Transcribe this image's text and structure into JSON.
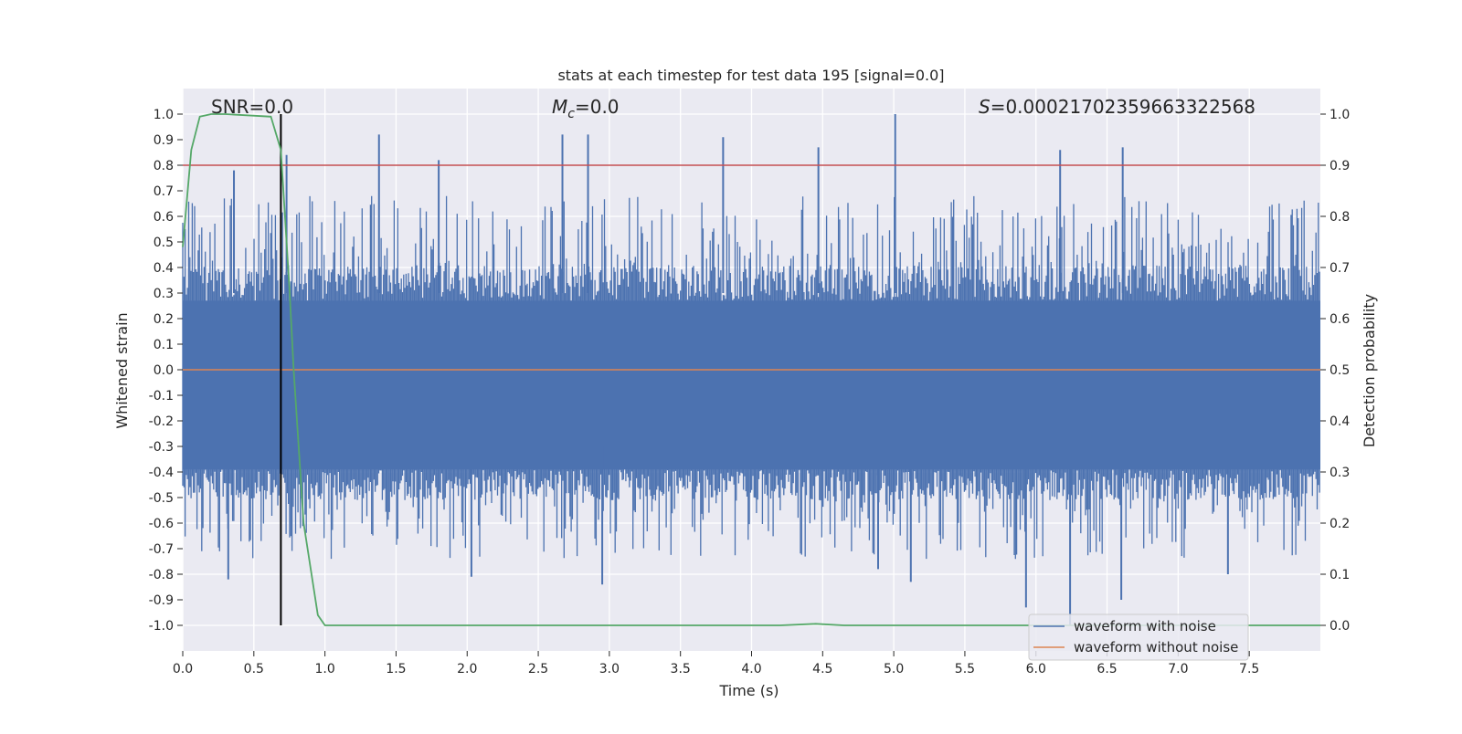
{
  "chart_data": {
    "type": "line",
    "title": "stats at each timestep for test data 195 [signal=0.0]",
    "xlabel": "Time (s)",
    "ylabel": "Whitened strain",
    "y2label": "Detection probability",
    "xlim": [
      0.0,
      8.0
    ],
    "ylim": [
      -1.1,
      1.1
    ],
    "y2lim": [
      -0.05,
      1.05
    ],
    "x_ticks": [
      "0.0",
      "0.5",
      "1.0",
      "1.5",
      "2.0",
      "2.5",
      "3.0",
      "3.5",
      "4.0",
      "4.5",
      "5.0",
      "5.5",
      "6.0",
      "6.5",
      "7.0",
      "7.5"
    ],
    "y_ticks": [
      "1.0",
      "0.9",
      "0.8",
      "0.7",
      "0.6",
      "0.5",
      "0.4",
      "0.3",
      "0.2",
      "0.1",
      "0.0",
      "-0.1",
      "-0.2",
      "-0.3",
      "-0.4",
      "-0.5",
      "-0.6",
      "-0.7",
      "-0.8",
      "-0.9",
      "-1.0"
    ],
    "y2_ticks": [
      "1.0",
      "0.9",
      "0.8",
      "0.7",
      "0.6",
      "0.5",
      "0.4",
      "0.3",
      "0.2",
      "0.1",
      "0.0"
    ],
    "grid": true,
    "legend_position": "lower-right",
    "annotations": {
      "snr": "SNR=0.0",
      "mc_symbol": "M",
      "mc_sub": "c",
      "mc_value": "=0.0",
      "s_symbol": "S",
      "s_value": "=0.00021702359663322568"
    },
    "threshold": {
      "axis": "right",
      "value": 0.9,
      "color": "#c44e52"
    },
    "marker_time": 0.69,
    "series": [
      {
        "name": "waveform with noise",
        "axis": "left",
        "color": "#4c72b0",
        "style": "dense-noise",
        "body_range": [
          -0.39,
          0.27
        ],
        "upper_peaks": [
          {
            "x": 0.36,
            "y": 0.78
          },
          {
            "x": 0.73,
            "y": 0.84
          },
          {
            "x": 1.38,
            "y": 0.92
          },
          {
            "x": 1.8,
            "y": 0.82
          },
          {
            "x": 2.67,
            "y": 0.92
          },
          {
            "x": 2.85,
            "y": 0.92
          },
          {
            "x": 3.8,
            "y": 0.91
          },
          {
            "x": 4.47,
            "y": 0.87
          },
          {
            "x": 5.01,
            "y": 1.0
          },
          {
            "x": 6.17,
            "y": 0.86
          },
          {
            "x": 6.61,
            "y": 0.87
          }
        ],
        "lower_peaks": [
          {
            "x": 0.32,
            "y": -0.82
          },
          {
            "x": 2.03,
            "y": -0.81
          },
          {
            "x": 2.95,
            "y": -0.84
          },
          {
            "x": 4.89,
            "y": -0.78
          },
          {
            "x": 5.12,
            "y": -0.83
          },
          {
            "x": 5.93,
            "y": -0.93
          },
          {
            "x": 6.24,
            "y": -1.0
          },
          {
            "x": 6.6,
            "y": -0.9
          },
          {
            "x": 7.35,
            "y": -0.8
          }
        ]
      },
      {
        "name": "waveform without noise",
        "axis": "left",
        "color": "#dd8452",
        "x": [
          0.0,
          8.0
        ],
        "y": [
          0.0,
          0.0
        ]
      },
      {
        "name": "detection probability",
        "axis": "right",
        "color": "#55a868",
        "x": [
          0.0,
          0.06,
          0.12,
          0.2,
          0.3,
          0.62,
          0.69,
          0.75,
          0.78,
          0.85,
          0.95,
          1.0,
          1.1,
          4.2,
          4.45,
          4.65,
          8.0
        ],
        "y": [
          0.74,
          0.93,
          0.995,
          1.0,
          1.0,
          0.995,
          0.93,
          0.66,
          0.5,
          0.2,
          0.02,
          0.0,
          0.0,
          0.0,
          0.003,
          0.0,
          0.0
        ]
      }
    ]
  }
}
